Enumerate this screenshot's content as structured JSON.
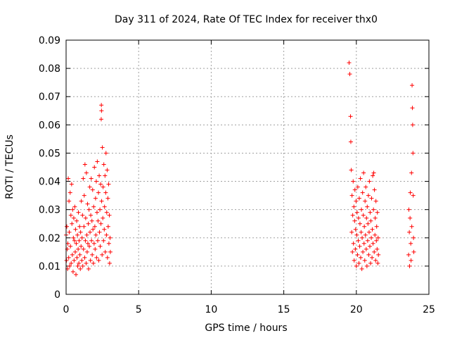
{
  "chart_data": {
    "type": "scatter",
    "title": "Day 311 of 2024, Rate Of TEC Index for receiver thx0",
    "xlabel": "GPS time / hours",
    "ylabel": "ROTI / TECUs",
    "xlim": [
      0,
      25
    ],
    "ylim": [
      0,
      0.09
    ],
    "xticks": [
      0,
      5,
      10,
      15,
      20,
      25
    ],
    "xtick_labels": [
      "0",
      "5",
      "10",
      "15",
      "20",
      "25"
    ],
    "yticks": [
      0,
      0.01,
      0.02,
      0.03,
      0.04,
      0.05,
      0.06,
      0.07,
      0.08,
      0.09
    ],
    "ytick_labels": [
      "0",
      "0.01",
      "0.02",
      "0.03",
      "0.04",
      "0.05",
      "0.06",
      "0.07",
      "0.08",
      "0.09"
    ],
    "grid": true,
    "marker": "+",
    "color": "#ff0000",
    "series": [
      {
        "points": [
          [
            0.0,
            0.021
          ],
          [
            0.03,
            0.012
          ],
          [
            0.05,
            0.024
          ],
          [
            0.08,
            0.016
          ],
          [
            0.1,
            0.009
          ],
          [
            0.12,
            0.018
          ],
          [
            0.15,
            0.041
          ],
          [
            0.18,
            0.013
          ],
          [
            0.2,
            0.033
          ],
          [
            0.22,
            0.022
          ],
          [
            0.25,
            0.01
          ],
          [
            0.28,
            0.036
          ],
          [
            0.3,
            0.017
          ],
          [
            0.33,
            0.028
          ],
          [
            0.35,
            0.011
          ],
          [
            0.38,
            0.039
          ],
          [
            0.4,
            0.025
          ],
          [
            0.43,
            0.014
          ],
          [
            0.45,
            0.03
          ],
          [
            0.48,
            0.008
          ],
          [
            0.5,
            0.02
          ],
          [
            0.53,
            0.027
          ],
          [
            0.55,
            0.012
          ],
          [
            0.58,
            0.019
          ],
          [
            0.6,
            0.031
          ],
          [
            0.63,
            0.015
          ],
          [
            0.65,
            0.023
          ],
          [
            0.68,
            0.007
          ],
          [
            0.7,
            0.018
          ],
          [
            0.73,
            0.026
          ],
          [
            0.75,
            0.013
          ],
          [
            0.78,
            0.021
          ],
          [
            0.8,
            0.01
          ],
          [
            0.83,
            0.016
          ],
          [
            0.85,
            0.029
          ],
          [
            0.88,
            0.011
          ],
          [
            0.9,
            0.019
          ],
          [
            0.93,
            0.024
          ],
          [
            0.95,
            0.014
          ],
          [
            0.98,
            0.009
          ],
          [
            1.0,
            0.022
          ],
          [
            1.03,
            0.017
          ],
          [
            1.05,
            0.033
          ],
          [
            1.08,
            0.012
          ],
          [
            1.1,
            0.02
          ],
          [
            1.13,
            0.028
          ],
          [
            1.15,
            0.01
          ],
          [
            1.18,
            0.041
          ],
          [
            1.2,
            0.016
          ],
          [
            1.23,
            0.024
          ],
          [
            1.25,
            0.035
          ],
          [
            1.28,
            0.013
          ],
          [
            1.3,
            0.046
          ],
          [
            1.33,
            0.019
          ],
          [
            1.35,
            0.027
          ],
          [
            1.38,
            0.011
          ],
          [
            1.4,
            0.043
          ],
          [
            1.43,
            0.021
          ],
          [
            1.45,
            0.015
          ],
          [
            1.48,
            0.032
          ],
          [
            1.5,
            0.018
          ],
          [
            1.53,
            0.025
          ],
          [
            1.55,
            0.009
          ],
          [
            1.58,
            0.03
          ],
          [
            1.6,
            0.017
          ],
          [
            1.63,
            0.038
          ],
          [
            1.65,
            0.022
          ],
          [
            1.68,
            0.012
          ],
          [
            1.7,
            0.028
          ],
          [
            1.73,
            0.041
          ],
          [
            1.75,
            0.019
          ],
          [
            1.78,
            0.026
          ],
          [
            1.8,
            0.014
          ],
          [
            1.83,
            0.037
          ],
          [
            1.85,
            0.023
          ],
          [
            1.88,
            0.011
          ],
          [
            1.9,
            0.031
          ],
          [
            1.93,
            0.018
          ],
          [
            1.95,
            0.045
          ],
          [
            1.98,
            0.024
          ],
          [
            2.0,
            0.016
          ],
          [
            2.03,
            0.034
          ],
          [
            2.05,
            0.021
          ],
          [
            2.08,
            0.04
          ],
          [
            2.1,
            0.013
          ],
          [
            2.13,
            0.029
          ],
          [
            2.15,
            0.047
          ],
          [
            2.18,
            0.019
          ],
          [
            2.2,
            0.026
          ],
          [
            2.23,
            0.036
          ],
          [
            2.25,
            0.012
          ],
          [
            2.28,
            0.042
          ],
          [
            2.3,
            0.022
          ],
          [
            2.33,
            0.03
          ],
          [
            2.35,
            0.017
          ],
          [
            2.38,
            0.039
          ],
          [
            2.4,
            0.025
          ],
          [
            2.42,
            0.062
          ],
          [
            2.43,
            0.067
          ],
          [
            2.44,
            0.065
          ],
          [
            2.45,
            0.033
          ],
          [
            2.48,
            0.014
          ],
          [
            2.5,
            0.052
          ],
          [
            2.53,
            0.027
          ],
          [
            2.55,
            0.038
          ],
          [
            2.58,
            0.019
          ],
          [
            2.6,
            0.046
          ],
          [
            2.63,
            0.023
          ],
          [
            2.65,
            0.031
          ],
          [
            2.68,
            0.042
          ],
          [
            2.7,
            0.015
          ],
          [
            2.73,
            0.036
          ],
          [
            2.75,
            0.05
          ],
          [
            2.78,
            0.021
          ],
          [
            2.8,
            0.029
          ],
          [
            2.83,
            0.044
          ],
          [
            2.85,
            0.013
          ],
          [
            2.88,
            0.034
          ],
          [
            2.9,
            0.024
          ],
          [
            2.93,
            0.039
          ],
          [
            2.95,
            0.018
          ],
          [
            2.98,
            0.028
          ],
          [
            3.0,
            0.011
          ],
          [
            3.03,
            0.02
          ],
          [
            3.05,
            0.015
          ],
          [
            19.5,
            0.082
          ],
          [
            19.55,
            0.078
          ],
          [
            19.6,
            0.063
          ],
          [
            19.62,
            0.054
          ],
          [
            19.65,
            0.044
          ],
          [
            19.68,
            0.022
          ],
          [
            19.7,
            0.035
          ],
          [
            19.73,
            0.015
          ],
          [
            19.75,
            0.028
          ],
          [
            19.78,
            0.04
          ],
          [
            19.8,
            0.018
          ],
          [
            19.83,
            0.031
          ],
          [
            19.85,
            0.012
          ],
          [
            19.88,
            0.026
          ],
          [
            19.9,
            0.037
          ],
          [
            19.93,
            0.016
          ],
          [
            19.95,
            0.023
          ],
          [
            19.98,
            0.033
          ],
          [
            20.0,
            0.01
          ],
          [
            20.03,
            0.021
          ],
          [
            20.05,
            0.029
          ],
          [
            20.08,
            0.014
          ],
          [
            20.1,
            0.038
          ],
          [
            20.13,
            0.019
          ],
          [
            20.15,
            0.027
          ],
          [
            20.18,
            0.011
          ],
          [
            20.2,
            0.034
          ],
          [
            20.23,
            0.017
          ],
          [
            20.25,
            0.025
          ],
          [
            20.28,
            0.041
          ],
          [
            20.3,
            0.013
          ],
          [
            20.33,
            0.022
          ],
          [
            20.35,
            0.03
          ],
          [
            20.38,
            0.009
          ],
          [
            20.4,
            0.02
          ],
          [
            20.43,
            0.036
          ],
          [
            20.45,
            0.015
          ],
          [
            20.48,
            0.028
          ],
          [
            20.5,
            0.043
          ],
          [
            20.53,
            0.018
          ],
          [
            20.55,
            0.024
          ],
          [
            20.58,
            0.012
          ],
          [
            20.6,
            0.033
          ],
          [
            20.63,
            0.021
          ],
          [
            20.65,
            0.038
          ],
          [
            20.68,
            0.016
          ],
          [
            20.7,
            0.027
          ],
          [
            20.73,
            0.01
          ],
          [
            20.75,
            0.031
          ],
          [
            20.78,
            0.019
          ],
          [
            20.8,
            0.025
          ],
          [
            20.83,
            0.035
          ],
          [
            20.85,
            0.014
          ],
          [
            20.88,
            0.022
          ],
          [
            20.9,
            0.04
          ],
          [
            20.93,
            0.017
          ],
          [
            20.95,
            0.029
          ],
          [
            20.98,
            0.011
          ],
          [
            21.0,
            0.026
          ],
          [
            21.03,
            0.02
          ],
          [
            21.05,
            0.034
          ],
          [
            21.08,
            0.013
          ],
          [
            21.1,
            0.023
          ],
          [
            21.13,
            0.042
          ],
          [
            21.15,
            0.018
          ],
          [
            21.18,
            0.03
          ],
          [
            21.2,
            0.043
          ],
          [
            21.23,
            0.015
          ],
          [
            21.25,
            0.037
          ],
          [
            21.28,
            0.021
          ],
          [
            21.3,
            0.027
          ],
          [
            21.33,
            0.012
          ],
          [
            21.35,
            0.033
          ],
          [
            21.38,
            0.019
          ],
          [
            21.4,
            0.024
          ],
          [
            21.43,
            0.016
          ],
          [
            21.45,
            0.029
          ],
          [
            21.48,
            0.011
          ],
          [
            21.5,
            0.02
          ],
          [
            21.52,
            0.014
          ],
          [
            23.6,
            0.014
          ],
          [
            23.62,
            0.03
          ],
          [
            23.65,
            0.022
          ],
          [
            23.67,
            0.01
          ],
          [
            23.7,
            0.027
          ],
          [
            23.72,
            0.036
          ],
          [
            23.75,
            0.018
          ],
          [
            23.77,
            0.012
          ],
          [
            23.8,
            0.043
          ],
          [
            23.82,
            0.024
          ],
          [
            23.84,
            0.074
          ],
          [
            23.86,
            0.066
          ],
          [
            23.88,
            0.06
          ],
          [
            23.9,
            0.05
          ],
          [
            23.92,
            0.035
          ],
          [
            23.94,
            0.02
          ],
          [
            23.96,
            0.015
          ]
        ]
      }
    ]
  }
}
